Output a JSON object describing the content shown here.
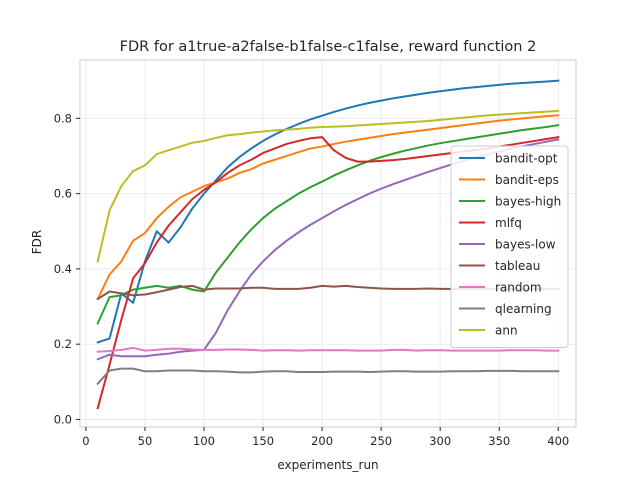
{
  "chart_data": {
    "type": "line",
    "title": "FDR for a1true-a2false-b1false-c1false, reward function 2",
    "xlabel": "experiments_run",
    "ylabel": "FDR",
    "xlim": [
      -5,
      415
    ],
    "ylim": [
      -0.02,
      0.955
    ],
    "x_ticks": [
      0,
      50,
      100,
      150,
      200,
      250,
      300,
      350,
      400
    ],
    "y_ticks": [
      0.0,
      0.2,
      0.4,
      0.6,
      0.8
    ],
    "y_tick_labels": [
      "0.0",
      "0.2",
      "0.4",
      "0.6",
      "0.8"
    ],
    "grid": true,
    "legend_position": "center-right",
    "x": [
      10,
      20,
      30,
      40,
      50,
      60,
      70,
      80,
      90,
      100,
      110,
      120,
      130,
      140,
      150,
      160,
      170,
      180,
      190,
      200,
      210,
      220,
      230,
      240,
      250,
      260,
      270,
      280,
      290,
      300,
      310,
      320,
      330,
      340,
      350,
      360,
      370,
      380,
      390,
      400
    ],
    "series": [
      {
        "name": "bandit-opt",
        "color": "#1f77b4",
        "values": [
          0.205,
          0.215,
          0.335,
          0.31,
          0.42,
          0.5,
          0.47,
          0.51,
          0.56,
          0.6,
          0.635,
          0.67,
          0.697,
          0.72,
          0.74,
          0.757,
          0.772,
          0.785,
          0.797,
          0.807,
          0.817,
          0.826,
          0.834,
          0.841,
          0.847,
          0.853,
          0.858,
          0.863,
          0.868,
          0.872,
          0.876,
          0.88,
          0.883,
          0.886,
          0.889,
          0.892,
          0.894,
          0.896,
          0.898,
          0.9
        ]
      },
      {
        "name": "bandit-eps",
        "color": "#ff7f0e",
        "values": [
          0.32,
          0.385,
          0.42,
          0.475,
          0.495,
          0.535,
          0.565,
          0.59,
          0.605,
          0.62,
          0.63,
          0.64,
          0.655,
          0.665,
          0.68,
          0.69,
          0.7,
          0.71,
          0.72,
          0.725,
          0.732,
          0.738,
          0.743,
          0.748,
          0.753,
          0.758,
          0.762,
          0.766,
          0.77,
          0.774,
          0.778,
          0.782,
          0.786,
          0.79,
          0.794,
          0.797,
          0.8,
          0.803,
          0.806,
          0.808
        ]
      },
      {
        "name": "bayes-high",
        "color": "#2ca02c",
        "values": [
          0.255,
          0.325,
          0.33,
          0.345,
          0.35,
          0.355,
          0.35,
          0.355,
          0.345,
          0.34,
          0.39,
          0.43,
          0.47,
          0.505,
          0.535,
          0.56,
          0.58,
          0.6,
          0.617,
          0.632,
          0.648,
          0.662,
          0.675,
          0.687,
          0.697,
          0.706,
          0.714,
          0.721,
          0.728,
          0.734,
          0.739,
          0.744,
          0.749,
          0.754,
          0.759,
          0.764,
          0.769,
          0.773,
          0.777,
          0.782
        ]
      },
      {
        "name": "mlfq",
        "color": "#d62728",
        "values": [
          0.03,
          0.145,
          0.265,
          0.375,
          0.415,
          0.47,
          0.515,
          0.55,
          0.585,
          0.61,
          0.63,
          0.655,
          0.675,
          0.69,
          0.708,
          0.72,
          0.732,
          0.74,
          0.747,
          0.75,
          0.715,
          0.695,
          0.685,
          0.685,
          0.687,
          0.689,
          0.692,
          0.696,
          0.7,
          0.704,
          0.708,
          0.712,
          0.716,
          0.72,
          0.725,
          0.73,
          0.735,
          0.74,
          0.745,
          0.75
        ]
      },
      {
        "name": "bayes-low",
        "color": "#9467bd",
        "values": [
          0.16,
          0.172,
          0.168,
          0.168,
          0.168,
          0.172,
          0.175,
          0.18,
          0.183,
          0.185,
          0.23,
          0.29,
          0.34,
          0.385,
          0.42,
          0.45,
          0.475,
          0.497,
          0.517,
          0.535,
          0.553,
          0.57,
          0.585,
          0.6,
          0.613,
          0.625,
          0.636,
          0.647,
          0.658,
          0.668,
          0.678,
          0.687,
          0.696,
          0.704,
          0.712,
          0.719,
          0.726,
          0.732,
          0.738,
          0.744
        ]
      },
      {
        "name": "tableau",
        "color": "#8c564b",
        "values": [
          0.32,
          0.34,
          0.335,
          0.33,
          0.332,
          0.338,
          0.345,
          0.352,
          0.355,
          0.345,
          0.348,
          0.348,
          0.348,
          0.35,
          0.35,
          0.347,
          0.347,
          0.347,
          0.35,
          0.355,
          0.353,
          0.355,
          0.352,
          0.35,
          0.348,
          0.347,
          0.347,
          0.347,
          0.348,
          0.347,
          0.347,
          0.347,
          0.347,
          0.347,
          0.347,
          0.347,
          0.347,
          0.347,
          0.347,
          0.347
        ]
      },
      {
        "name": "random",
        "color": "#e377c2",
        "values": [
          0.18,
          0.182,
          0.185,
          0.19,
          0.183,
          0.185,
          0.188,
          0.188,
          0.186,
          0.185,
          0.185,
          0.186,
          0.186,
          0.185,
          0.183,
          0.184,
          0.184,
          0.183,
          0.184,
          0.184,
          0.184,
          0.184,
          0.183,
          0.183,
          0.183,
          0.185,
          0.185,
          0.183,
          0.184,
          0.184,
          0.183,
          0.183,
          0.183,
          0.183,
          0.183,
          0.184,
          0.184,
          0.184,
          0.183,
          0.183
        ]
      },
      {
        "name": "qlearning",
        "color": "#7f7f7f",
        "values": [
          0.095,
          0.13,
          0.135,
          0.135,
          0.128,
          0.128,
          0.13,
          0.13,
          0.13,
          0.128,
          0.128,
          0.127,
          0.125,
          0.125,
          0.127,
          0.128,
          0.128,
          0.126,
          0.126,
          0.126,
          0.127,
          0.127,
          0.127,
          0.126,
          0.127,
          0.128,
          0.128,
          0.127,
          0.127,
          0.127,
          0.128,
          0.128,
          0.128,
          0.129,
          0.129,
          0.129,
          0.128,
          0.128,
          0.128,
          0.128
        ]
      },
      {
        "name": "ann",
        "color": "#bcbd22",
        "values": [
          0.42,
          0.555,
          0.62,
          0.66,
          0.675,
          0.705,
          0.715,
          0.725,
          0.735,
          0.74,
          0.748,
          0.755,
          0.758,
          0.762,
          0.765,
          0.768,
          0.77,
          0.772,
          0.775,
          0.777,
          0.778,
          0.779,
          0.781,
          0.783,
          0.785,
          0.787,
          0.789,
          0.791,
          0.793,
          0.796,
          0.799,
          0.802,
          0.805,
          0.808,
          0.81,
          0.812,
          0.814,
          0.816,
          0.818,
          0.82
        ]
      }
    ]
  }
}
